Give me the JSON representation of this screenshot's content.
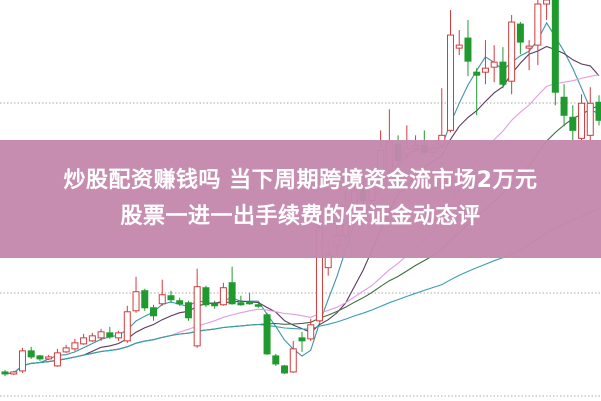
{
  "banner": {
    "line1": "炒股配资赚钱吗 当下周期跨境资金流市场2万元",
    "line2": "股票一进一出手续费的保证金动态评",
    "background": "#c48aae"
  },
  "chart_data": {
    "type": "candlestick",
    "title": "",
    "xlabel": "",
    "ylabel": "",
    "ylim": [
      0,
      40
    ],
    "grid": true,
    "grid_style": "dotted horizontal",
    "colors": {
      "up": "#d23c3c",
      "down": "#1f9a2f"
    },
    "moving_averages": [
      {
        "period": 5,
        "color": "#3f93a8"
      },
      {
        "period": 10,
        "color": "#5b3a5e"
      },
      {
        "period": 20,
        "color": "#e39be3"
      },
      {
        "period": 30,
        "color": "#3f6e3f"
      },
      {
        "period": 60,
        "color": "#3aa0a8"
      }
    ],
    "candles_ohlc": [
      [
        2.9,
        3.1,
        2.5,
        2.7
      ],
      [
        2.7,
        3.0,
        2.6,
        2.9
      ],
      [
        3.0,
        5.3,
        2.8,
        5.0
      ],
      [
        5.0,
        5.4,
        4.2,
        4.4
      ],
      [
        4.5,
        4.6,
        4.0,
        4.2
      ],
      [
        4.2,
        4.6,
        4.1,
        4.4
      ],
      [
        3.5,
        5.2,
        3.4,
        4.8
      ],
      [
        4.9,
        5.6,
        4.8,
        5.3
      ],
      [
        5.2,
        6.2,
        5.0,
        5.8
      ],
      [
        5.7,
        6.7,
        5.6,
        6.3
      ],
      [
        6.0,
        6.8,
        5.9,
        6.5
      ],
      [
        6.3,
        7.2,
        6.0,
        6.9
      ],
      [
        6.8,
        7.4,
        6.2,
        6.4
      ],
      [
        6.3,
        7.0,
        6.0,
        6.8
      ],
      [
        6.0,
        9.5,
        5.8,
        8.9
      ],
      [
        9.0,
        12.4,
        8.8,
        10.9
      ],
      [
        11.0,
        11.2,
        9.0,
        9.3
      ],
      [
        9.3,
        9.6,
        8.0,
        8.5
      ],
      [
        9.7,
        12.1,
        9.5,
        10.6
      ],
      [
        10.5,
        11.0,
        9.8,
        10.1
      ],
      [
        10.0,
        10.3,
        9.5,
        9.7
      ],
      [
        9.8,
        10.0,
        8.0,
        8.3
      ],
      [
        5.5,
        13.2,
        5.3,
        11.4
      ],
      [
        11.3,
        11.5,
        9.4,
        9.6
      ],
      [
        9.7,
        10.0,
        9.2,
        9.5
      ],
      [
        9.6,
        11.8,
        9.5,
        11.3
      ],
      [
        11.8,
        13.4,
        9.6,
        9.7
      ],
      [
        9.8,
        10.5,
        9.5,
        9.6
      ],
      [
        9.9,
        10.8,
        9.6,
        9.7
      ],
      [
        9.6,
        9.8,
        9.3,
        9.5
      ],
      [
        8.6,
        8.8,
        4.6,
        4.7
      ],
      [
        4.5,
        4.7,
        3.5,
        3.7
      ],
      [
        3.5,
        3.6,
        2.7,
        2.8
      ],
      [
        2.9,
        6.0,
        2.8,
        5.2
      ],
      [
        6.3,
        6.9,
        4.9,
        6.0
      ],
      [
        6.2,
        8.2,
        6.0,
        7.6
      ],
      [
        8.0,
        18.0,
        7.9,
        17.3
      ],
      [
        13.3,
        16.0,
        12.5,
        14.6
      ],
      [
        15.5,
        18.0,
        14.5,
        16.5
      ],
      [
        16.5,
        21.0,
        16.0,
        19.5
      ],
      [
        19.0,
        22.0,
        18.0,
        21.0
      ],
      [
        21.0,
        22.5,
        19.5,
        20.0
      ],
      [
        20.0,
        23.0,
        19.5,
        22.5
      ],
      [
        22.0,
        27.0,
        21.5,
        25.0
      ],
      [
        23.0,
        29.1,
        22.0,
        25.8
      ],
      [
        25.6,
        26.5,
        23.0,
        24.0
      ],
      [
        24.6,
        27.5,
        24.2,
        25.2
      ],
      [
        25.2,
        26.5,
        24.8,
        25.5
      ],
      [
        25.5,
        27.0,
        24.6,
        24.8
      ],
      [
        24.8,
        25.6,
        24.4,
        25.2
      ],
      [
        25.5,
        31.2,
        25.2,
        26.5
      ],
      [
        27.0,
        39.0,
        26.8,
        36.5
      ],
      [
        35.2,
        37.0,
        34.5,
        35.5
      ],
      [
        36.2,
        38.0,
        32.4,
        33.9
      ],
      [
        32.8,
        33.2,
        28.5,
        32.5
      ],
      [
        32.8,
        36.0,
        31.6,
        33.2
      ],
      [
        33.3,
        35.5,
        31.8,
        33.8
      ],
      [
        33.8,
        35.3,
        31.2,
        31.6
      ],
      [
        31.9,
        38.5,
        30.6,
        37.8
      ],
      [
        37.6,
        37.8,
        34.6,
        35.8
      ],
      [
        35.2,
        36.0,
        33.0,
        35.4
      ],
      [
        35.5,
        40.5,
        33.5,
        39.6
      ],
      [
        39.6,
        40.5,
        38.0,
        40.0
      ],
      [
        40.0,
        41.0,
        29.5,
        30.8
      ],
      [
        30.3,
        31.6,
        27.4,
        28.5
      ],
      [
        28.3,
        29.5,
        26.0,
        27.0
      ],
      [
        26.2,
        30.6,
        26.0,
        29.7
      ],
      [
        26.5,
        31.3,
        26.0,
        29.7
      ],
      [
        29.8,
        30.5,
        27.5,
        28.0
      ]
    ]
  }
}
